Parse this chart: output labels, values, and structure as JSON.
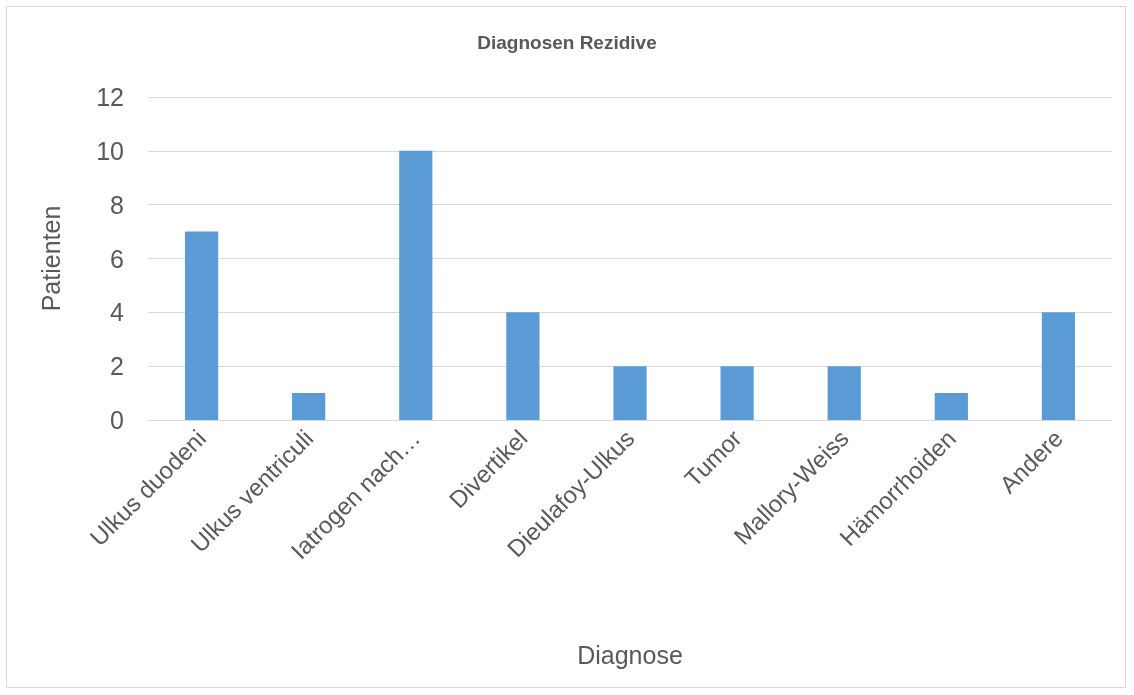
{
  "chart_data": {
    "type": "bar",
    "title": "Diagnosen Rezidive",
    "xlabel": "Diagnose",
    "ylabel": "Patienten",
    "categories": [
      "Ulkus duodeni",
      "Ulkus ventriculi",
      "Iatrogen nach…",
      "Divertikel",
      "Dieulafoy-Ulkus",
      "Tumor",
      "Mallory-Weiss",
      "Hämorrhoiden",
      "Andere"
    ],
    "values": [
      7,
      1,
      10,
      4,
      2,
      2,
      2,
      1,
      4
    ],
    "color": "#5b9bd5",
    "ylim": [
      0,
      12
    ],
    "yticks": [
      0,
      2,
      4,
      6,
      8,
      10,
      12
    ],
    "grid": "y"
  }
}
